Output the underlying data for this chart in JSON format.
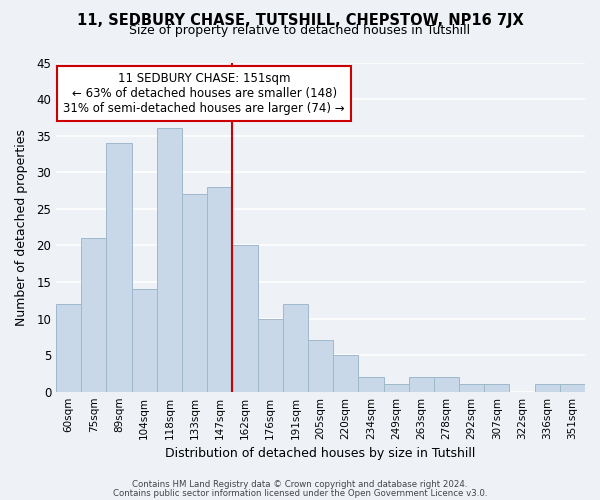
{
  "title_line1": "11, SEDBURY CHASE, TUTSHILL, CHEPSTOW, NP16 7JX",
  "title_line2": "Size of property relative to detached houses in Tutshill",
  "xlabel": "Distribution of detached houses by size in Tutshill",
  "ylabel": "Number of detached properties",
  "bar_labels": [
    "60sqm",
    "75sqm",
    "89sqm",
    "104sqm",
    "118sqm",
    "133sqm",
    "147sqm",
    "162sqm",
    "176sqm",
    "191sqm",
    "205sqm",
    "220sqm",
    "234sqm",
    "249sqm",
    "263sqm",
    "278sqm",
    "292sqm",
    "307sqm",
    "322sqm",
    "336sqm",
    "351sqm"
  ],
  "bar_values": [
    12,
    21,
    34,
    14,
    36,
    27,
    28,
    20,
    10,
    12,
    7,
    5,
    2,
    1,
    2,
    2,
    1,
    1,
    0,
    1,
    1
  ],
  "bar_color": "#c8d8e8",
  "bar_edge_color": "#a0b8cc",
  "vline_x": 6.5,
  "vline_color": "#cc0000",
  "annotation_title": "11 SEDBURY CHASE: 151sqm",
  "annotation_line1": "← 63% of detached houses are smaller (148)",
  "annotation_line2": "31% of semi-detached houses are larger (74) →",
  "annotation_box_color": "#ffffff",
  "annotation_box_edge": "#cc0000",
  "ylim": [
    0,
    45
  ],
  "yticks": [
    0,
    5,
    10,
    15,
    20,
    25,
    30,
    35,
    40,
    45
  ],
  "footer_line1": "Contains HM Land Registry data © Crown copyright and database right 2024.",
  "footer_line2": "Contains public sector information licensed under the Open Government Licence v3.0.",
  "background_color": "#eef2f7",
  "grid_color": "#ffffff"
}
